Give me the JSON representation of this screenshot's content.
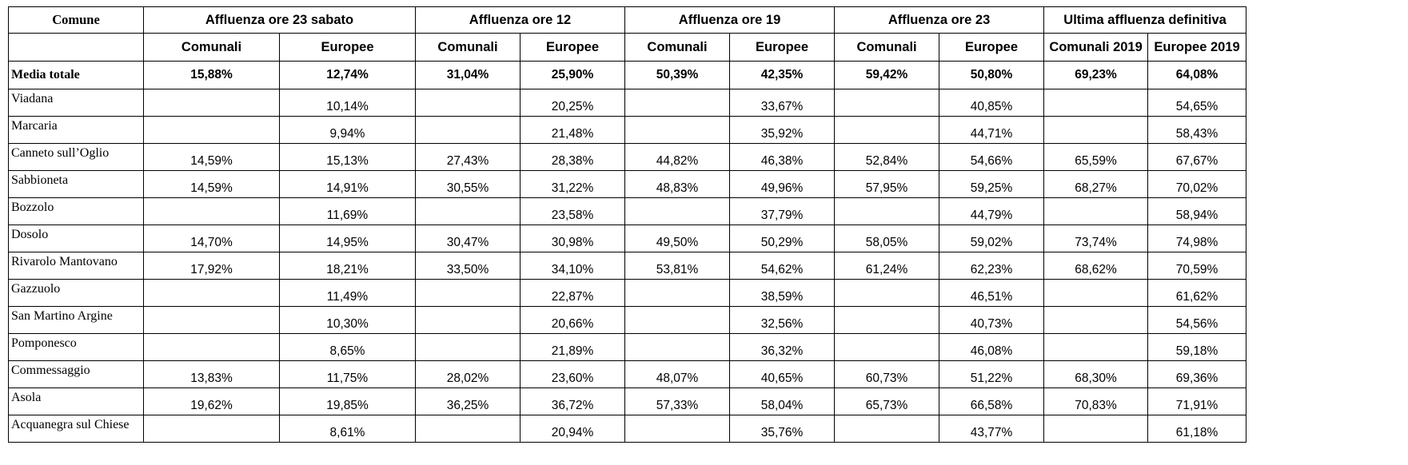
{
  "header": {
    "comune": "Comune",
    "groups": [
      "Affluenza ore 23 sabato",
      "Affluenza ore 12",
      "Affluenza ore 19",
      "Affluenza ore 23",
      "Ultima affluenza definitiva"
    ],
    "subheaders": [
      "Comunali",
      "Europee",
      "Comunali",
      "Europee",
      "Comunali",
      "Europee",
      "Comunali",
      "Europee",
      "Comunali 2019",
      "Europee 2019"
    ]
  },
  "total": {
    "label": "Media totale",
    "values": [
      "15,88%",
      "12,74%",
      "31,04%",
      "25,90%",
      "50,39%",
      "42,35%",
      "59,42%",
      "50,80%",
      "69,23%",
      "64,08%"
    ]
  },
  "rows": [
    {
      "name": "Viadana",
      "values": [
        "",
        "10,14%",
        "",
        "20,25%",
        "",
        "33,67%",
        "",
        "40,85%",
        "",
        "54,65%"
      ]
    },
    {
      "name": "Marcaria",
      "values": [
        "",
        "9,94%",
        "",
        "21,48%",
        "",
        "35,92%",
        "",
        "44,71%",
        "",
        "58,43%"
      ]
    },
    {
      "name": "Canneto sull’Oglio",
      "values": [
        "14,59%",
        "15,13%",
        "27,43%",
        "28,38%",
        "44,82%",
        "46,38%",
        "52,84%",
        "54,66%",
        "65,59%",
        "67,67%"
      ]
    },
    {
      "name": "Sabbioneta",
      "values": [
        "14,59%",
        "14,91%",
        "30,55%",
        "31,22%",
        "48,83%",
        "49,96%",
        "57,95%",
        "59,25%",
        "68,27%",
        "70,02%"
      ]
    },
    {
      "name": "Bozzolo",
      "values": [
        "",
        "11,69%",
        "",
        "23,58%",
        "",
        "37,79%",
        "",
        "44,79%",
        "",
        "58,94%"
      ]
    },
    {
      "name": "Dosolo",
      "values": [
        "14,70%",
        "14,95%",
        "30,47%",
        "30,98%",
        "49,50%",
        "50,29%",
        "58,05%",
        "59,02%",
        "73,74%",
        "74,98%"
      ]
    },
    {
      "name": "Rivarolo Mantovano",
      "values": [
        "17,92%",
        "18,21%",
        "33,50%",
        "34,10%",
        "53,81%",
        "54,62%",
        "61,24%",
        "62,23%",
        "68,62%",
        "70,59%"
      ]
    },
    {
      "name": "Gazzuolo",
      "values": [
        "",
        "11,49%",
        "",
        "22,87%",
        "",
        "38,59%",
        "",
        "46,51%",
        "",
        "61,62%"
      ]
    },
    {
      "name": "San Martino Argine",
      "values": [
        "",
        "10,30%",
        "",
        "20,66%",
        "",
        "32,56%",
        "",
        "40,73%",
        "",
        "54,56%"
      ]
    },
    {
      "name": "Pomponesco",
      "values": [
        "",
        "8,65%",
        "",
        "21,89%",
        "",
        "36,32%",
        "",
        "46,08%",
        "",
        "59,18%"
      ]
    },
    {
      "name": "Commessaggio",
      "values": [
        "13,83%",
        "11,75%",
        "28,02%",
        "23,60%",
        "48,07%",
        "40,65%",
        "60,73%",
        "51,22%",
        "68,30%",
        "69,36%"
      ]
    },
    {
      "name": "Asola",
      "values": [
        "19,62%",
        "19,85%",
        "36,25%",
        "36,72%",
        "57,33%",
        "58,04%",
        "65,73%",
        "66,58%",
        "70,83%",
        "71,91%"
      ]
    },
    {
      "name": "Acquanegra sul Chiese",
      "values": [
        "",
        "8,61%",
        "",
        "20,94%",
        "",
        "35,76%",
        "",
        "43,77%",
        "",
        "61,18%"
      ]
    }
  ]
}
